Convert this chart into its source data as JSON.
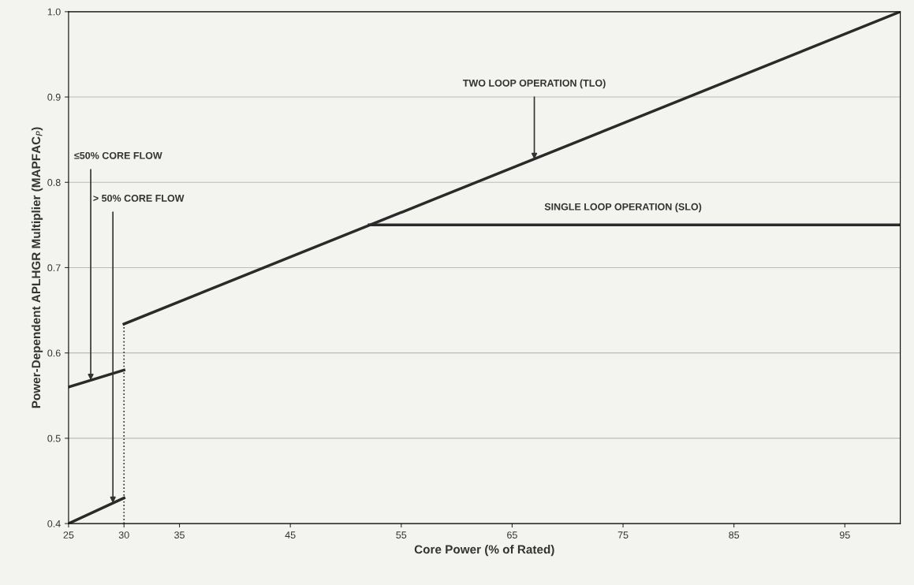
{
  "chart_data": {
    "type": "line",
    "xlabel": "Core Power (% of Rated)",
    "ylabel": "Power-Dependent APLHGR Multiplier (MAPFAC$_{P}$)",
    "series": [
      {
        "color": "#2a2a2a",
        "x": [
          30,
          100
        ],
        "values": [
          0.634,
          1.0
        ]
      },
      {
        "color": "#2a2a2a",
        "x": [
          52.1,
          100
        ],
        "values": [
          0.75,
          0.75
        ]
      },
      {
        "color": "#2a2a2a",
        "x": [
          25,
          30
        ],
        "values": [
          0.56,
          0.58
        ]
      },
      {
        "color": "#2a2a2a",
        "x": [
          25,
          30
        ],
        "values": [
          0.4,
          0.43
        ]
      },
      {
        "color": "#2a2a2a",
        "x": [
          30,
          30
        ],
        "values": [
          0.4,
          0.634
        ],
        "line_style": "dotted"
      }
    ],
    "annotations": [
      {
        "text": "TWO LOOP OPERATION (TLO)",
        "x": 67,
        "y": 0.827
      },
      "SINGLE LOOP OPERATION (SLO)",
      {
        "text": "≤50% CORE FLOW",
        "x": 27,
        "y": 0.568
      },
      {
        "text": "> 50% CORE FLOW",
        "x": 29,
        "y": 0.424
      }
    ],
    "xlim": [
      25,
      100
    ],
    "xticks": [
      25,
      30,
      35,
      45,
      55,
      65,
      75,
      85,
      95
    ],
    "ylim": [
      0.4,
      1.0
    ],
    "yticks": [
      {
        "value": 0.4,
        "label": "0.4"
      },
      {
        "value": 0.5,
        "label": "0.5"
      },
      {
        "value": 0.6,
        "label": "0.6"
      },
      {
        "value": 0.7,
        "label": "0.7"
      },
      {
        "value": 0.8,
        "label": "0.8"
      },
      {
        "value": 0.9,
        "label": "0.9"
      },
      {
        "value": 1.0,
        "label": "1.0"
      }
    ],
    "grid": "y",
    "marker": "none",
    "line_style": "solid"
  }
}
